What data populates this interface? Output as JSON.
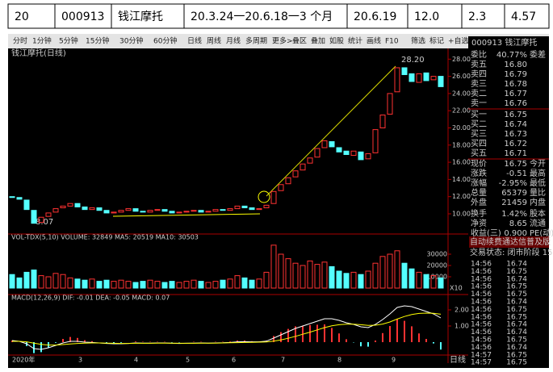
{
  "table": {
    "cells": [
      "20",
      "000913",
      "钱江摩托",
      "20.3.24一20.6.18一3 个月",
      "20.6.19",
      "12.0",
      "2.3",
      "4.57"
    ]
  },
  "toolbar": {
    "left": [
      "分时",
      "1分钟",
      "5分钟",
      "15分钟",
      "30分钟",
      "60分钟",
      "日线",
      "周线",
      "月线",
      "多周期",
      "更多>"
    ],
    "right": [
      "叠区",
      "叠加",
      "如股",
      "统计",
      "画线",
      "F10",
      "筛选",
      "标记",
      "+自选",
      "返回"
    ]
  },
  "chart_data": {
    "type": "candlestick",
    "title": "钱江摩托(日线)",
    "open": [
      12.0,
      11.9,
      11.6,
      10.4,
      9.0,
      9.7,
      10.2,
      10.7,
      10.9,
      11.2,
      10.8,
      10.5,
      10.7,
      10.4,
      10.1,
      10.2,
      10.4,
      10.6,
      10.3,
      10.2,
      10.4,
      10.5,
      10.3,
      10.1,
      10.2,
      10.3,
      10.4,
      10.2,
      10.3,
      10.5,
      10.4,
      10.6,
      10.9,
      10.7,
      10.5,
      10.7,
      11.2,
      12.7,
      13.5,
      14.3,
      15.1,
      15.9,
      16.6,
      17.7,
      18.4,
      17.7,
      17.3,
      16.8,
      17.2,
      16.4,
      17.1,
      20.0,
      21.6,
      24.2,
      27.0,
      26.3,
      25.3,
      26.4,
      25.6,
      26.0
    ],
    "close": [
      11.9,
      11.7,
      10.5,
      8.9,
      9.6,
      10.1,
      10.6,
      10.9,
      11.2,
      10.8,
      10.5,
      10.7,
      10.4,
      10.1,
      10.2,
      10.4,
      10.6,
      10.3,
      10.2,
      10.4,
      10.5,
      10.3,
      10.1,
      10.2,
      10.3,
      10.4,
      10.2,
      10.3,
      10.5,
      10.4,
      10.6,
      10.9,
      10.7,
      10.5,
      10.6,
      11.0,
      12.6,
      13.4,
      14.2,
      15.0,
      15.8,
      16.5,
      17.6,
      18.5,
      17.8,
      17.2,
      16.9,
      17.3,
      16.3,
      17.0,
      19.8,
      21.5,
      24.0,
      27.0,
      26.2,
      25.4,
      26.3,
      25.5,
      26.0,
      24.8
    ],
    "ylim": [
      7.65,
      29.25
    ],
    "yticks": [
      {
        "value": 10,
        "label": "10.00"
      },
      {
        "value": 12,
        "label": "12.00"
      },
      {
        "value": 14,
        "label": "14.00"
      },
      {
        "value": 16,
        "label": "16.00"
      },
      {
        "value": 18,
        "label": "18.00"
      },
      {
        "value": 20,
        "label": "20.00"
      },
      {
        "value": 22,
        "label": "22.00"
      },
      {
        "value": 24,
        "label": "24.00"
      },
      {
        "value": 26,
        "label": "26.00"
      },
      {
        "value": 28,
        "label": "28.00"
      }
    ],
    "annotations": [
      "28.20",
      "8.07"
    ],
    "dates": [
      "2020年",
      "3",
      "4",
      "5",
      "6",
      "7",
      "8",
      "9"
    ],
    "period": "日线"
  },
  "volume": {
    "header": "VOL-TDX(5,10) VOLUME: 32849 MA5: 20519 MA10: 30503",
    "unit": "X10",
    "values": [
      12000,
      9000,
      14000,
      16000,
      11000,
      10000,
      13000,
      12000,
      9000,
      8000,
      7000,
      8000,
      6000,
      7000,
      6000,
      7000,
      6000,
      5000,
      6000,
      7000,
      6000,
      5000,
      6000,
      5000,
      6000,
      7000,
      6000,
      5000,
      6000,
      7000,
      8000,
      11000,
      9000,
      7000,
      8000,
      14000,
      38000,
      30000,
      26000,
      22000,
      20000,
      24000,
      21000,
      23000,
      19000,
      15000,
      13000,
      14000,
      12000,
      15000,
      22000,
      28000,
      30000,
      33000,
      22000,
      17000,
      14000,
      12000,
      11000,
      9000
    ],
    "ylim": [
      0,
      40000
    ],
    "yticks": [
      10000,
      20000,
      30000
    ]
  },
  "macd": {
    "header": "MACD(12,26,9) DIF: -0.01 DEA: -0.05 MACD: 0.07",
    "dif": [
      0.1,
      0.05,
      -0.1,
      -0.4,
      -0.45,
      -0.35,
      -0.2,
      -0.05,
      0.05,
      0.05,
      0.0,
      -0.02,
      -0.05,
      -0.08,
      -0.1,
      -0.1,
      -0.08,
      -0.05,
      -0.06,
      -0.06,
      -0.05,
      -0.05,
      -0.07,
      -0.08,
      -0.07,
      -0.06,
      -0.05,
      -0.06,
      -0.05,
      -0.04,
      -0.02,
      0.02,
      0.03,
      0.02,
      0.02,
      0.06,
      0.25,
      0.45,
      0.65,
      0.85,
      1.0,
      1.15,
      1.3,
      1.45,
      1.45,
      1.35,
      1.2,
      1.1,
      0.95,
      0.9,
      1.1,
      1.4,
      1.75,
      2.15,
      2.25,
      2.2,
      2.05,
      1.9,
      1.75,
      1.5
    ],
    "dea": [
      0.05,
      0.05,
      0.02,
      -0.06,
      -0.14,
      -0.18,
      -0.18,
      -0.15,
      -0.11,
      -0.08,
      -0.06,
      -0.05,
      -0.05,
      -0.06,
      -0.07,
      -0.08,
      -0.08,
      -0.07,
      -0.07,
      -0.07,
      -0.06,
      -0.06,
      -0.06,
      -0.07,
      -0.07,
      -0.07,
      -0.06,
      -0.06,
      -0.06,
      -0.05,
      -0.04,
      -0.03,
      -0.02,
      -0.01,
      0.0,
      0.01,
      0.06,
      0.14,
      0.24,
      0.36,
      0.49,
      0.62,
      0.76,
      0.9,
      1.01,
      1.08,
      1.11,
      1.11,
      1.08,
      1.04,
      1.05,
      1.12,
      1.25,
      1.43,
      1.59,
      1.71,
      1.78,
      1.8,
      1.79,
      1.73
    ],
    "macd": [
      0.1,
      0.0,
      -0.24,
      -0.68,
      -0.62,
      -0.34,
      -0.04,
      0.2,
      0.32,
      0.26,
      0.12,
      0.06,
      0.0,
      -0.04,
      -0.06,
      -0.04,
      0.0,
      0.04,
      0.02,
      0.02,
      0.02,
      0.02,
      -0.02,
      -0.02,
      0.0,
      0.02,
      0.02,
      0.0,
      0.02,
      0.02,
      0.04,
      0.1,
      0.1,
      0.06,
      0.04,
      0.1,
      0.38,
      0.62,
      0.82,
      0.98,
      1.02,
      1.06,
      1.08,
      1.1,
      0.88,
      0.54,
      0.18,
      -0.02,
      -0.26,
      -0.28,
      0.1,
      0.56,
      1.0,
      1.44,
      1.32,
      0.98,
      0.54,
      0.2,
      -0.08,
      -0.46
    ],
    "ylim": [
      -0.8,
      2.7
    ],
    "yticks": [
      {
        "value": 1,
        "label": "1.00"
      },
      {
        "value": 2,
        "label": "2.00"
      }
    ]
  },
  "quote": {
    "header": "000913 钱江摩托",
    "rows": [
      [
        "委比",
        "40.77%",
        "委差"
      ],
      [
        "卖五",
        "16.80",
        ""
      ],
      [
        "卖四",
        "16.79",
        ""
      ],
      [
        "卖三",
        "16.78",
        ""
      ],
      [
        "卖二",
        "16.77",
        ""
      ],
      [
        "卖一",
        "16.76",
        ""
      ],
      [
        "买一",
        "16.75",
        ""
      ],
      [
        "买二",
        "16.74",
        ""
      ],
      [
        "买三",
        "16.73",
        ""
      ],
      [
        "买四",
        "16.72",
        ""
      ],
      [
        "买五",
        "16.71",
        ""
      ],
      [
        "现价",
        "16.75",
        "今开"
      ],
      [
        "涨跌",
        "-0.51",
        "最高"
      ],
      [
        "涨幅",
        "-2.95%",
        "最低"
      ],
      [
        "总量",
        "65379",
        "量比"
      ],
      [
        "外盘",
        "21459",
        "内盘"
      ],
      [
        "换手",
        "1.42%",
        "股本"
      ],
      [
        "净资",
        "8.65",
        "流通"
      ],
      [
        "收益(三)",
        "0.900",
        "PE(动)"
      ]
    ],
    "notice": "自动续费通达信普及版",
    "status": "交易状态: 闭市阶段 15",
    "ticks": [
      [
        "14:56",
        "16.74"
      ],
      [
        "14:56",
        "16.75"
      ],
      [
        "14:56",
        "16.74"
      ],
      [
        "14:56",
        "16.75"
      ],
      [
        "14:56",
        "16.75"
      ],
      [
        "14:56",
        "16.74"
      ],
      [
        "14:56",
        "16.75"
      ],
      [
        "14:56",
        "16.75"
      ],
      [
        "14:56",
        "16.74"
      ],
      [
        "14:56",
        "16.74"
      ],
      [
        "14:56",
        "16.75"
      ],
      [
        "14:56",
        "16.74"
      ],
      [
        "14:57",
        "16.75"
      ],
      [
        "14:57",
        "16.75"
      ]
    ]
  }
}
